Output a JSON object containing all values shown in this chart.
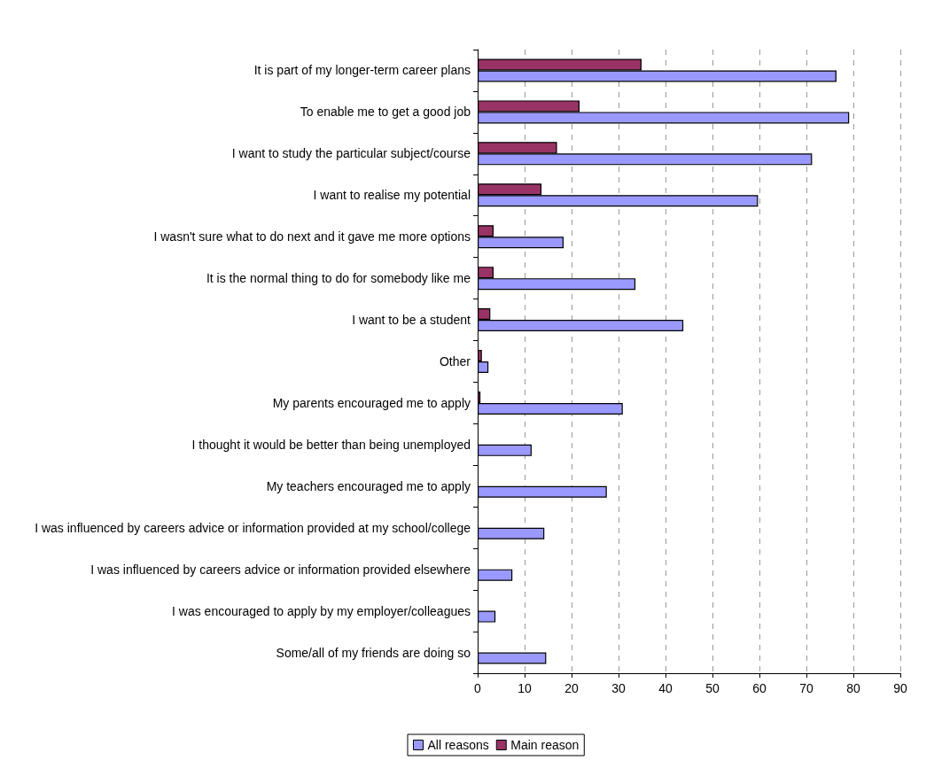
{
  "chart_data": {
    "type": "bar",
    "orientation": "horizontal",
    "categories": [
      "It is part of my longer-term career plans",
      "To enable me to get a good job",
      "I want to study the particular subject/course",
      "I want to realise my potential",
      "I wasn't sure what to do next and it gave me more options",
      "It is the normal thing to do for somebody like me",
      "I want to be a student",
      "Other",
      "My parents encouraged me to apply",
      "I thought it would be better than being unemployed",
      "My teachers encouraged me to apply",
      "I was influenced by careers advice or information provided at my school/college",
      "I was influenced by careers advice or information provided elsewhere",
      "I was encouraged to apply by my employer/colleagues",
      "Some/all of my friends are doing so"
    ],
    "series": [
      {
        "name": "All reasons",
        "color": "#9999ff",
        "values": [
          76.4,
          79.1,
          71.2,
          59.7,
          18.3,
          33.6,
          43.8,
          2.3,
          30.9,
          11.5,
          27.5,
          14.2,
          7.4,
          3.8,
          14.6
        ]
      },
      {
        "name": "Main reason",
        "color": "#993366",
        "values": [
          34.9,
          21.7,
          16.9,
          13.6,
          3.4,
          3.4,
          2.7,
          0.9,
          0.6,
          null,
          null,
          null,
          null,
          null,
          null
        ]
      }
    ],
    "xlim": [
      0,
      90
    ],
    "xticks": [
      0,
      10,
      20,
      30,
      40,
      50,
      60,
      70,
      80,
      90
    ],
    "grid": "x",
    "legend": "bottom"
  }
}
